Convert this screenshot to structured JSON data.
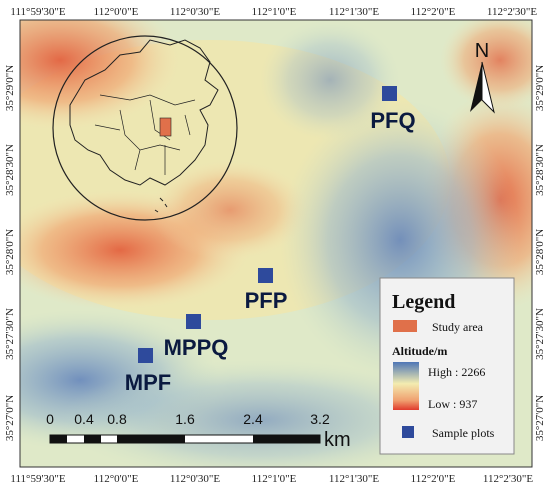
{
  "map": {
    "coords_top": [
      "111°59'30\"E",
      "112°0'0\"E",
      "112°0'30\"E",
      "112°1'0\"E",
      "112°1'30\"E",
      "112°2'0\"E",
      "112°2'30\"E"
    ],
    "coords_bottom": [
      "111°59'30\"E",
      "112°0'0\"E",
      "112°0'30\"E",
      "112°1'0\"E",
      "112°1'30\"E",
      "112°2'0\"E",
      "112°2'30\"E"
    ],
    "coords_left": [
      "35°29'0\"N",
      "35°28'30\"N",
      "35°28'0\"N",
      "35°27'30\"N",
      "35°27'0\"N"
    ],
    "coords_right": [
      "35°29'0\"N",
      "35°28'30\"N",
      "35°28'0\"N",
      "35°27'30\"N",
      "35°27'0\"N"
    ],
    "north_label": "N",
    "plots": [
      {
        "label": "PFQ"
      },
      {
        "label": "PFP"
      },
      {
        "label": "MPPQ"
      },
      {
        "label": "MPF"
      }
    ],
    "scale": {
      "ticks": [
        "0",
        "0.4",
        "0.8",
        "1.6",
        "2.4",
        "3.2"
      ],
      "unit": "km"
    },
    "legend": {
      "title": "Legend",
      "study_area": "Study area",
      "altitude_title": "Altitude/m",
      "high": "High : 2266",
      "low": "Low : 937",
      "sample_plots": "Sample plots"
    },
    "colors": {
      "plot_marker": "#2e4a9c",
      "study_area": "#e0704a",
      "high": "#e86a48",
      "mid": "#f3ecb0",
      "low": "#4e76b6"
    }
  }
}
